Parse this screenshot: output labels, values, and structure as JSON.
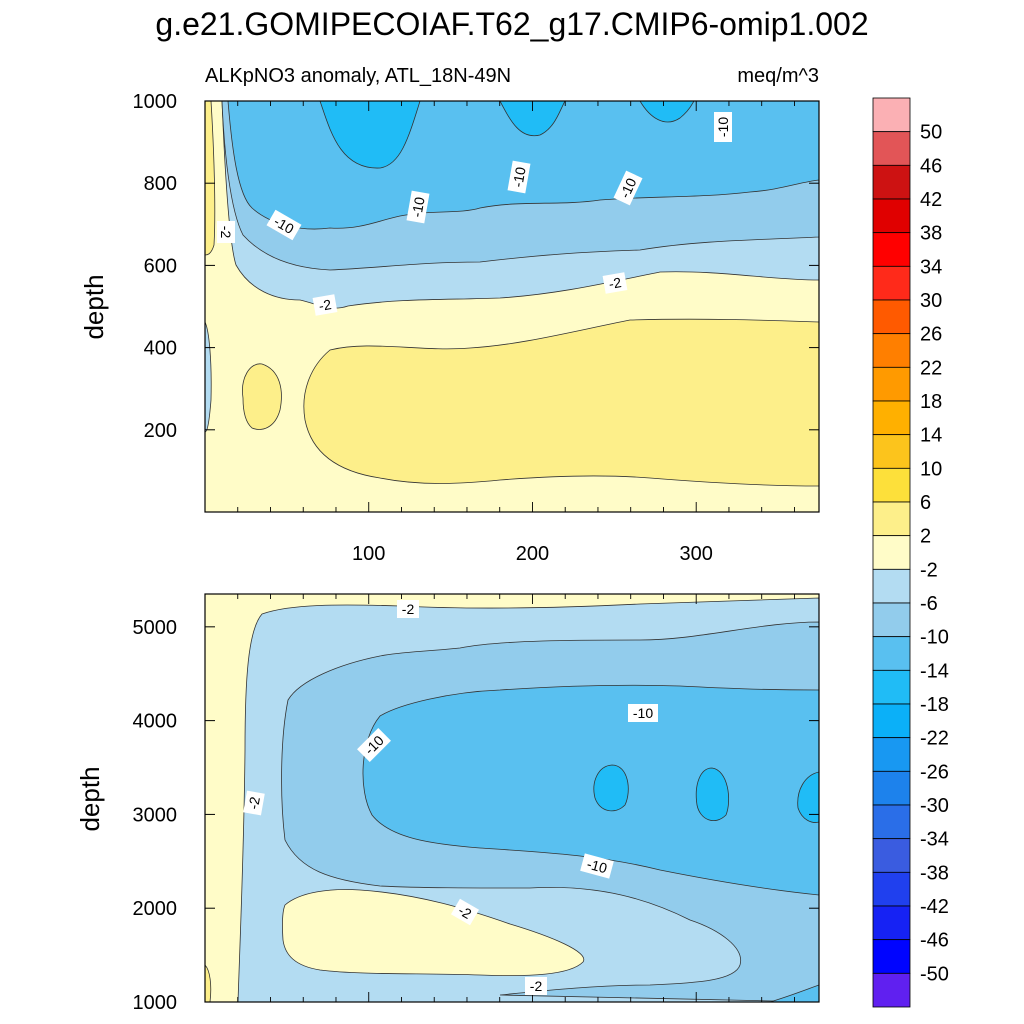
{
  "chart_data": {
    "type": "heatmap",
    "title": "g.e21.GOMIPECOIAF.T62_g17.CMIP6-omip1.002",
    "subtitle_left": "ALKpNO3 anomaly, ATL_18N-49N",
    "subtitle_right": "meq/m^3",
    "panels": [
      {
        "name": "upper",
        "ylabel": "depth",
        "ylim": [
          1000,
          0
        ],
        "yticks": [
          200,
          400,
          600,
          800,
          1000
        ],
        "xlim": [
          0,
          375
        ],
        "xticks": [
          100,
          200,
          300
        ],
        "contour_labels": [
          "-2",
          "-10",
          "-10",
          "-10",
          "-10",
          "-10",
          "-2",
          "-2"
        ]
      },
      {
        "name": "lower",
        "ylabel": "depth",
        "ylim": [
          5350,
          1000
        ],
        "yticks": [
          1000,
          2000,
          3000,
          4000,
          5000
        ],
        "xlim": [
          0,
          375
        ],
        "xticks": [],
        "contour_labels": [
          "-2",
          "-2",
          "-10",
          "-10",
          "-10",
          "-2",
          "-2"
        ]
      }
    ],
    "colorbar": {
      "labels": [
        "50",
        "46",
        "42",
        "38",
        "34",
        "30",
        "26",
        "22",
        "18",
        "14",
        "10",
        "6",
        "2",
        "-2",
        "-6",
        "-10",
        "-14",
        "-18",
        "-22",
        "-26",
        "-30",
        "-34",
        "-38",
        "-42",
        "-46",
        "-50"
      ],
      "colors": [
        "#fbb0b4",
        "#e25557",
        "#cd1212",
        "#e00000",
        "#ff0000",
        "#ff2a1a",
        "#ff5a00",
        "#ff7f00",
        "#ff9a00",
        "#ffb000",
        "#fcc41c",
        "#fde03a",
        "#fdef8a",
        "#fffcc8",
        "#b3dcf2",
        "#92ccec",
        "#59c0f0",
        "#20bcf6",
        "#0bb0f8",
        "#1898f2",
        "#1d82ec",
        "#2a6ee8",
        "#3a5ce0",
        "#2040ee",
        "#1622f4",
        "#0004ff",
        "#6020f0"
      ]
    }
  }
}
